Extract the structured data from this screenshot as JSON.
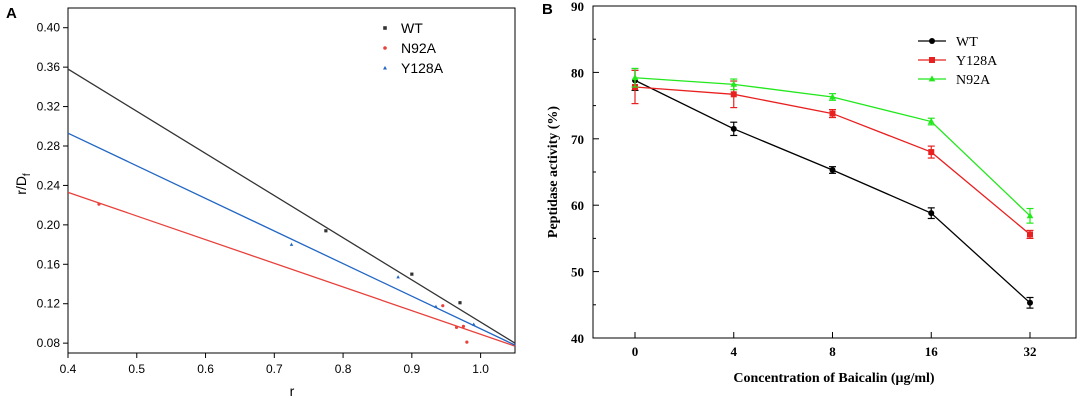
{
  "chart_data": [
    {
      "panel": "A",
      "type": "scatter",
      "xlabel": "r",
      "ylabel": "r/D",
      "ylabel_sub": "f",
      "xlim": [
        0.4,
        1.05
      ],
      "ylim": [
        0.07,
        0.42
      ],
      "xticks": [
        "0.4",
        "0.5",
        "0.6",
        "0.7",
        "0.8",
        "0.9",
        "1.0"
      ],
      "xtick_values": [
        0.4,
        0.5,
        0.6,
        0.7,
        0.8,
        0.9,
        1.0
      ],
      "yticks": [
        "0.08",
        "0.12",
        "0.16",
        "0.20",
        "0.24",
        "0.28",
        "0.32",
        "0.36",
        "0.40"
      ],
      "ytick_values": [
        0.08,
        0.12,
        0.16,
        0.2,
        0.24,
        0.28,
        0.32,
        0.36,
        0.4
      ],
      "legend_position": "top-right",
      "series": [
        {
          "name": "WT",
          "color": "#333333",
          "marker": "square",
          "points": [
            [
              0.775,
              0.194
            ],
            [
              0.9,
              0.15
            ],
            [
              0.97,
              0.121
            ]
          ],
          "fit_line": [
            [
              0.4,
              0.358
            ],
            [
              1.05,
              0.08
            ]
          ]
        },
        {
          "name": "N92A",
          "color": "#e8413c",
          "marker": "circle",
          "points": [
            [
              0.445,
              0.221
            ],
            [
              0.945,
              0.118
            ],
            [
              0.965,
              0.096
            ],
            [
              0.975,
              0.097
            ],
            [
              0.98,
              0.081
            ]
          ],
          "fit_line": [
            [
              0.4,
              0.233
            ],
            [
              1.05,
              0.077
            ]
          ]
        },
        {
          "name": "Y128A",
          "color": "#2166c4",
          "marker": "triangle",
          "points": [
            [
              0.725,
              0.18
            ],
            [
              0.88,
              0.147
            ],
            [
              0.935,
              0.117
            ],
            [
              0.99,
              0.099
            ]
          ],
          "fit_line": [
            [
              0.4,
              0.293
            ],
            [
              1.05,
              0.078
            ]
          ]
        }
      ]
    },
    {
      "panel": "B",
      "type": "line",
      "xlabel": "Concentration of Baicalin (μg/ml)",
      "ylabel": "Peptidase activity (%)",
      "categories": [
        "0",
        "4",
        "8",
        "16",
        "32"
      ],
      "ylim": [
        40,
        90
      ],
      "yticks": [
        "40",
        "50",
        "60",
        "70",
        "80",
        "90"
      ],
      "ytick_values": [
        40,
        50,
        60,
        70,
        80,
        90
      ],
      "legend_position": "top-right",
      "series": [
        {
          "name": "WT",
          "color": "#000000",
          "marker": "circle",
          "values": [
            78.8,
            71.5,
            65.3,
            58.8,
            45.3
          ],
          "errors": [
            1.5,
            1.0,
            0.5,
            0.8,
            0.8
          ]
        },
        {
          "name": "Y128A",
          "color": "#e8201f",
          "marker": "square",
          "values": [
            77.8,
            76.7,
            73.8,
            68.0,
            55.6
          ],
          "errors": [
            2.5,
            2.0,
            0.6,
            0.9,
            0.6
          ]
        },
        {
          "name": "N92A",
          "color": "#22e81c",
          "marker": "triangle",
          "values": [
            79.2,
            78.2,
            76.3,
            72.6,
            58.4
          ],
          "errors": [
            1.4,
            0.8,
            0.5,
            0.5,
            1.1
          ]
        }
      ]
    }
  ]
}
